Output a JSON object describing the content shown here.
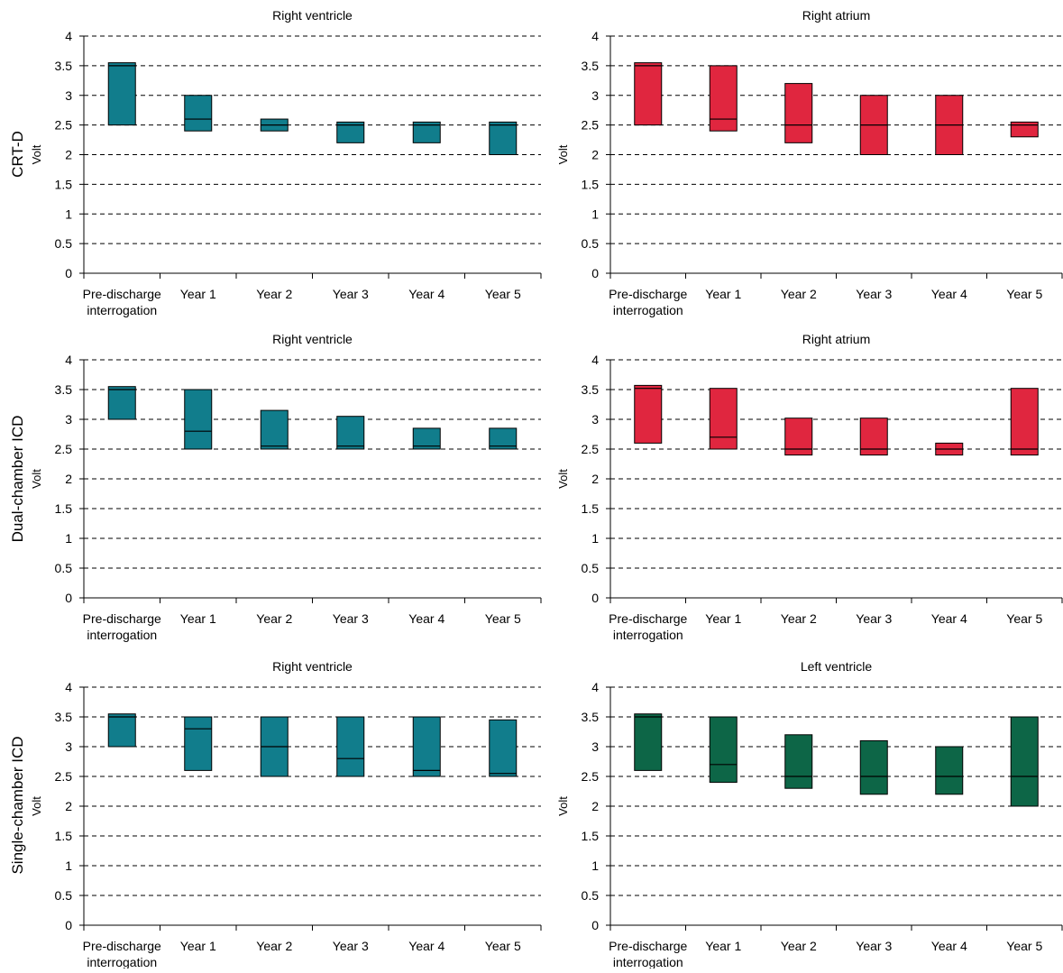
{
  "colors": {
    "right_ventricle": "#117d8c",
    "right_atrium": "#e0263f",
    "left_ventricle": "#0d6647",
    "grid": "#000000"
  },
  "rows": [
    {
      "label": "CRT-D"
    },
    {
      "label": "Dual-chamber ICD"
    },
    {
      "label": "Single-chamber ICD"
    }
  ],
  "chart_data": [
    {
      "type": "box",
      "row": "CRT-D",
      "title": "Right ventricle",
      "ylabel": "Volt",
      "ylim": [
        0,
        4
      ],
      "yticks": [
        "0",
        "0.5",
        "1",
        "1.5",
        "2",
        "2.5",
        "3",
        "3.5",
        "4"
      ],
      "grid": "horizontal dashed",
      "color": "right_ventricle",
      "categories": [
        "Pre-discharge interrogation",
        "Year 1",
        "Year 2",
        "Year 3",
        "Year 4",
        "Year 5"
      ],
      "low": [
        2.5,
        2.4,
        2.4,
        2.2,
        2.2,
        2.0
      ],
      "high": [
        3.55,
        3.0,
        2.6,
        2.55,
        2.55,
        2.55
      ],
      "median": [
        3.5,
        2.6,
        2.5,
        2.5,
        2.5,
        2.5
      ]
    },
    {
      "type": "box",
      "row": "CRT-D",
      "title": "Right atrium",
      "ylabel": "Volt",
      "ylim": [
        0,
        4
      ],
      "yticks": [
        "0",
        "0.5",
        "1",
        "1.5",
        "2",
        "2.5",
        "3",
        "3.5",
        "4"
      ],
      "grid": "horizontal dashed",
      "color": "right_atrium",
      "categories": [
        "Pre-discharge interrogation",
        "Year 1",
        "Year 2",
        "Year 3",
        "Year 4",
        "Year 5"
      ],
      "low": [
        2.5,
        2.4,
        2.2,
        2.0,
        2.0,
        2.3
      ],
      "high": [
        3.55,
        3.5,
        3.2,
        3.0,
        3.0,
        2.55
      ],
      "median": [
        3.5,
        2.6,
        2.5,
        2.5,
        2.5,
        2.5
      ]
    },
    {
      "type": "box",
      "row": "Dual-chamber ICD",
      "title": "Right ventricle",
      "ylabel": "Volt",
      "ylim": [
        0,
        4
      ],
      "yticks": [
        "0",
        "0.5",
        "1",
        "1.5",
        "2",
        "2.5",
        "3",
        "3.5",
        "4"
      ],
      "grid": "horizontal dashed",
      "color": "right_ventricle",
      "categories": [
        "Pre-discharge interrogation",
        "Year 1",
        "Year 2",
        "Year 3",
        "Year 4",
        "Year 5"
      ],
      "low": [
        3.0,
        2.5,
        2.5,
        2.5,
        2.5,
        2.5
      ],
      "high": [
        3.55,
        3.5,
        3.15,
        3.05,
        2.85,
        2.85
      ],
      "median": [
        3.5,
        2.8,
        2.55,
        2.55,
        2.55,
        2.55
      ]
    },
    {
      "type": "box",
      "row": "Dual-chamber ICD",
      "title": "Right atrium",
      "ylabel": "Volt",
      "ylim": [
        0,
        4
      ],
      "yticks": [
        "0",
        "0.5",
        "1",
        "1.5",
        "2",
        "2.5",
        "3",
        "3.5",
        "4"
      ],
      "grid": "horizontal dashed",
      "color": "right_atrium",
      "categories": [
        "Pre-discharge interrogation",
        "Year 1",
        "Year 2",
        "Year 3",
        "Year 4",
        "Year 5"
      ],
      "low": [
        2.6,
        2.5,
        2.4,
        2.4,
        2.4,
        2.4
      ],
      "high": [
        3.57,
        3.52,
        3.02,
        3.02,
        2.6,
        3.52
      ],
      "median": [
        3.52,
        2.7,
        2.5,
        2.5,
        2.5,
        2.5
      ]
    },
    {
      "type": "box",
      "row": "Single-chamber ICD",
      "title": "Right ventricle",
      "ylabel": "Volt",
      "ylim": [
        0,
        4
      ],
      "yticks": [
        "0",
        "0.5",
        "1",
        "1.5",
        "2",
        "2.5",
        "3",
        "3.5",
        "4"
      ],
      "grid": "horizontal dashed",
      "color": "right_ventricle",
      "categories": [
        "Pre-discharge interrogation",
        "Year 1",
        "Year 2",
        "Year 3",
        "Year 4",
        "Year 5"
      ],
      "low": [
        3.0,
        2.6,
        2.5,
        2.5,
        2.5,
        2.5
      ],
      "high": [
        3.55,
        3.5,
        3.5,
        3.5,
        3.5,
        3.45
      ],
      "median": [
        3.5,
        3.3,
        3.0,
        2.8,
        2.6,
        2.55
      ]
    },
    {
      "type": "box",
      "row": "Single-chamber ICD",
      "title": "Left ventricle",
      "ylabel": "Volt",
      "ylim": [
        0,
        4
      ],
      "yticks": [
        "0",
        "0.5",
        "1",
        "1.5",
        "2",
        "2.5",
        "3",
        "3.5",
        "4"
      ],
      "grid": "horizontal dashed",
      "color": "left_ventricle",
      "categories": [
        "Pre-discharge interrogation",
        "Year 1",
        "Year 2",
        "Year 3",
        "Year 4",
        "Year 5"
      ],
      "low": [
        2.6,
        2.4,
        2.3,
        2.2,
        2.2,
        2.0
      ],
      "high": [
        3.55,
        3.5,
        3.2,
        3.1,
        3.0,
        3.5
      ],
      "median": [
        3.5,
        2.7,
        2.5,
        2.5,
        2.5,
        2.5
      ]
    }
  ]
}
